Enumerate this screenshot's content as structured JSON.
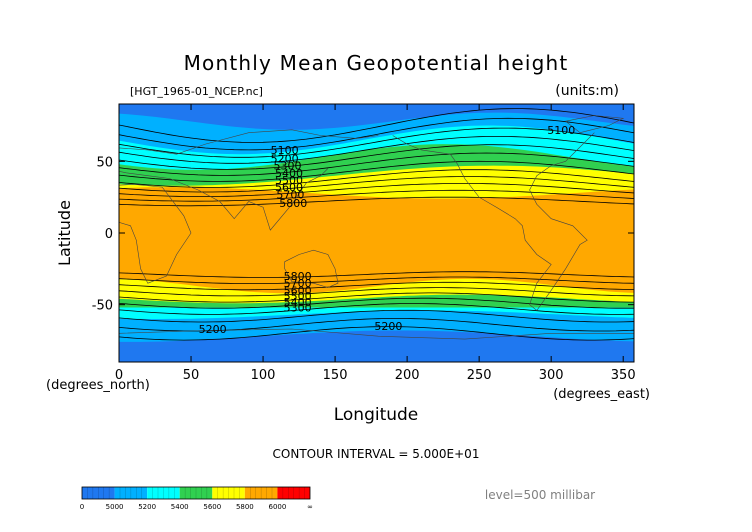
{
  "chart_data": {
    "type": "heatmap",
    "title": "Monthly Mean Geopotential height",
    "file_label": "[HGT_1965-01_NCEP.nc]",
    "units_label": "(units:m)",
    "xlabel": "Longitude",
    "ylabel": "Latitude",
    "x_units": "(degrees_east)",
    "y_units": "(degrees_north)",
    "xlim": [
      0,
      357.5
    ],
    "ylim": [
      -90,
      90
    ],
    "xticks": [
      0,
      50,
      100,
      150,
      200,
      250,
      300,
      350
    ],
    "yticks": [
      -50,
      0,
      50
    ],
    "contour_interval_text": "CONTOUR INTERVAL = 5.000E+01",
    "level_text": "level=500 millibar",
    "colorbar": {
      "labels": [
        "0",
        "5000",
        "5200",
        "5400",
        "5600",
        "5800",
        "6000",
        "∞"
      ],
      "colors": [
        "#1f78f0",
        "#00b0ff",
        "#00ffff",
        "#30d050",
        "#ffff00",
        "#ffa800",
        "#ff0000"
      ]
    },
    "contour_labels": [
      {
        "text": "5100",
        "lon": 307,
        "lat": 72
      },
      {
        "text": "5100",
        "lon": 115,
        "lat": 58
      },
      {
        "text": "5200",
        "lon": 115,
        "lat": 52
      },
      {
        "text": "5300",
        "lon": 117,
        "lat": 47
      },
      {
        "text": "5400",
        "lon": 118,
        "lat": 42
      },
      {
        "text": "5500",
        "lon": 118,
        "lat": 37
      },
      {
        "text": "5600",
        "lon": 118,
        "lat": 32
      },
      {
        "text": "5700",
        "lon": 119,
        "lat": 27
      },
      {
        "text": "5800",
        "lon": 121,
        "lat": 21
      },
      {
        "text": "5800",
        "lon": 124,
        "lat": -30
      },
      {
        "text": "5700",
        "lon": 124,
        "lat": -35
      },
      {
        "text": "5600",
        "lon": 124,
        "lat": -40
      },
      {
        "text": "5500",
        "lon": 124,
        "lat": -44
      },
      {
        "text": "5400",
        "lon": 124,
        "lat": -48
      },
      {
        "text": "5300",
        "lon": 124,
        "lat": -52
      },
      {
        "text": "5200",
        "lon": 65,
        "lat": -67
      },
      {
        "text": "5200",
        "lon": 187,
        "lat": -65
      }
    ]
  }
}
